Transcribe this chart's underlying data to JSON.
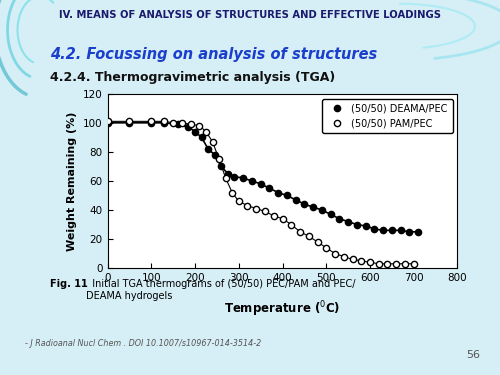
{
  "slide_bg": "#d6eef5",
  "header_bg": "#f0f500",
  "header_text": "IV. MEANS OF ANALYSIS OF STRUCTURES AND EFFECTIVE LOADINGS",
  "header_text_color": "#1a1a6e",
  "title1": "4.2. Focussing on analysis of structures",
  "title1_color": "#1a3fcc",
  "title2": "4.2.4. Thermogravimetric analysis (TGA)",
  "title2_color": "#111111",
  "ylabel": "Weight Remaining (%)",
  "xlim": [
    0,
    800
  ],
  "ylim": [
    0,
    120
  ],
  "xticks": [
    0,
    100,
    200,
    300,
    400,
    500,
    600,
    700,
    800
  ],
  "yticks": [
    0,
    20,
    40,
    60,
    80,
    100,
    120
  ],
  "legend1": "(50/50) DEAMA/PEC",
  "legend2": "(50/50) PAM/PEC",
  "fig_caption_bold": "Fig. 11",
  "fig_caption_normal": "  Initial TGA thermograms of (50/50) PEC/PAM and PEC/\nDEAMA hydrogels",
  "doi_text": "- J Radioanal Nucl Chem . DOI 10.1007/s10967-014-3514-2",
  "page_num": "56",
  "deama_x": [
    0,
    50,
    100,
    130,
    160,
    185,
    200,
    215,
    230,
    245,
    260,
    275,
    290,
    310,
    330,
    350,
    370,
    390,
    410,
    430,
    450,
    470,
    490,
    510,
    530,
    550,
    570,
    590,
    610,
    630,
    650,
    670,
    690,
    710
  ],
  "deama_y": [
    100,
    100,
    100,
    100,
    99,
    97,
    94,
    90,
    82,
    78,
    70,
    65,
    63,
    62,
    60,
    58,
    55,
    52,
    50,
    47,
    44,
    42,
    40,
    37,
    34,
    32,
    30,
    29,
    27,
    26,
    26,
    26,
    25,
    25
  ],
  "pam_x": [
    0,
    50,
    100,
    130,
    150,
    170,
    190,
    210,
    225,
    240,
    255,
    270,
    285,
    300,
    320,
    340,
    360,
    380,
    400,
    420,
    440,
    460,
    480,
    500,
    520,
    540,
    560,
    580,
    600,
    620,
    640,
    660,
    680,
    700
  ],
  "pam_y": [
    101,
    101,
    101,
    101,
    100,
    100,
    99,
    98,
    94,
    87,
    75,
    62,
    52,
    46,
    43,
    41,
    39,
    36,
    34,
    30,
    25,
    22,
    18,
    14,
    10,
    8,
    6,
    5,
    4,
    3,
    3,
    3,
    3,
    3
  ]
}
